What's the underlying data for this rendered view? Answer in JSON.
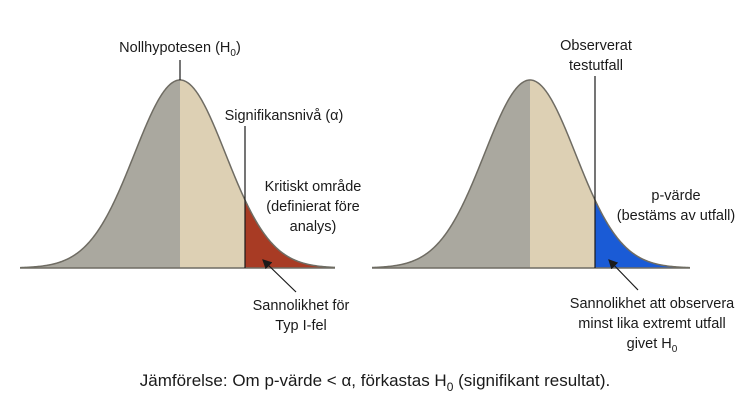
{
  "left": {
    "null_label": {
      "pre": "Nollhypotesen (H",
      "sub": "0",
      "post": ")"
    },
    "alpha_label": "Signifikansnivå (α)",
    "region_label": [
      "Kritiskt område",
      "(definierat före",
      "analys)"
    ],
    "prob_label": [
      "Sannolikhet för",
      "Typ I-fel"
    ]
  },
  "right": {
    "observed_label": [
      "Observerat",
      "testutfall"
    ],
    "p_label": [
      "p-värde",
      "(bestäms av utfall)"
    ],
    "prob_label": [
      "Sannolikhet att observera",
      "minst lika extremt utfall"
    ],
    "given_label": {
      "pre": "givet H",
      "sub": "0"
    }
  },
  "footer": {
    "pre": "Jämförelse: Om p-värde < α, förkastas H",
    "sub": "0",
    "post": " (signifikant resultat)."
  }
}
